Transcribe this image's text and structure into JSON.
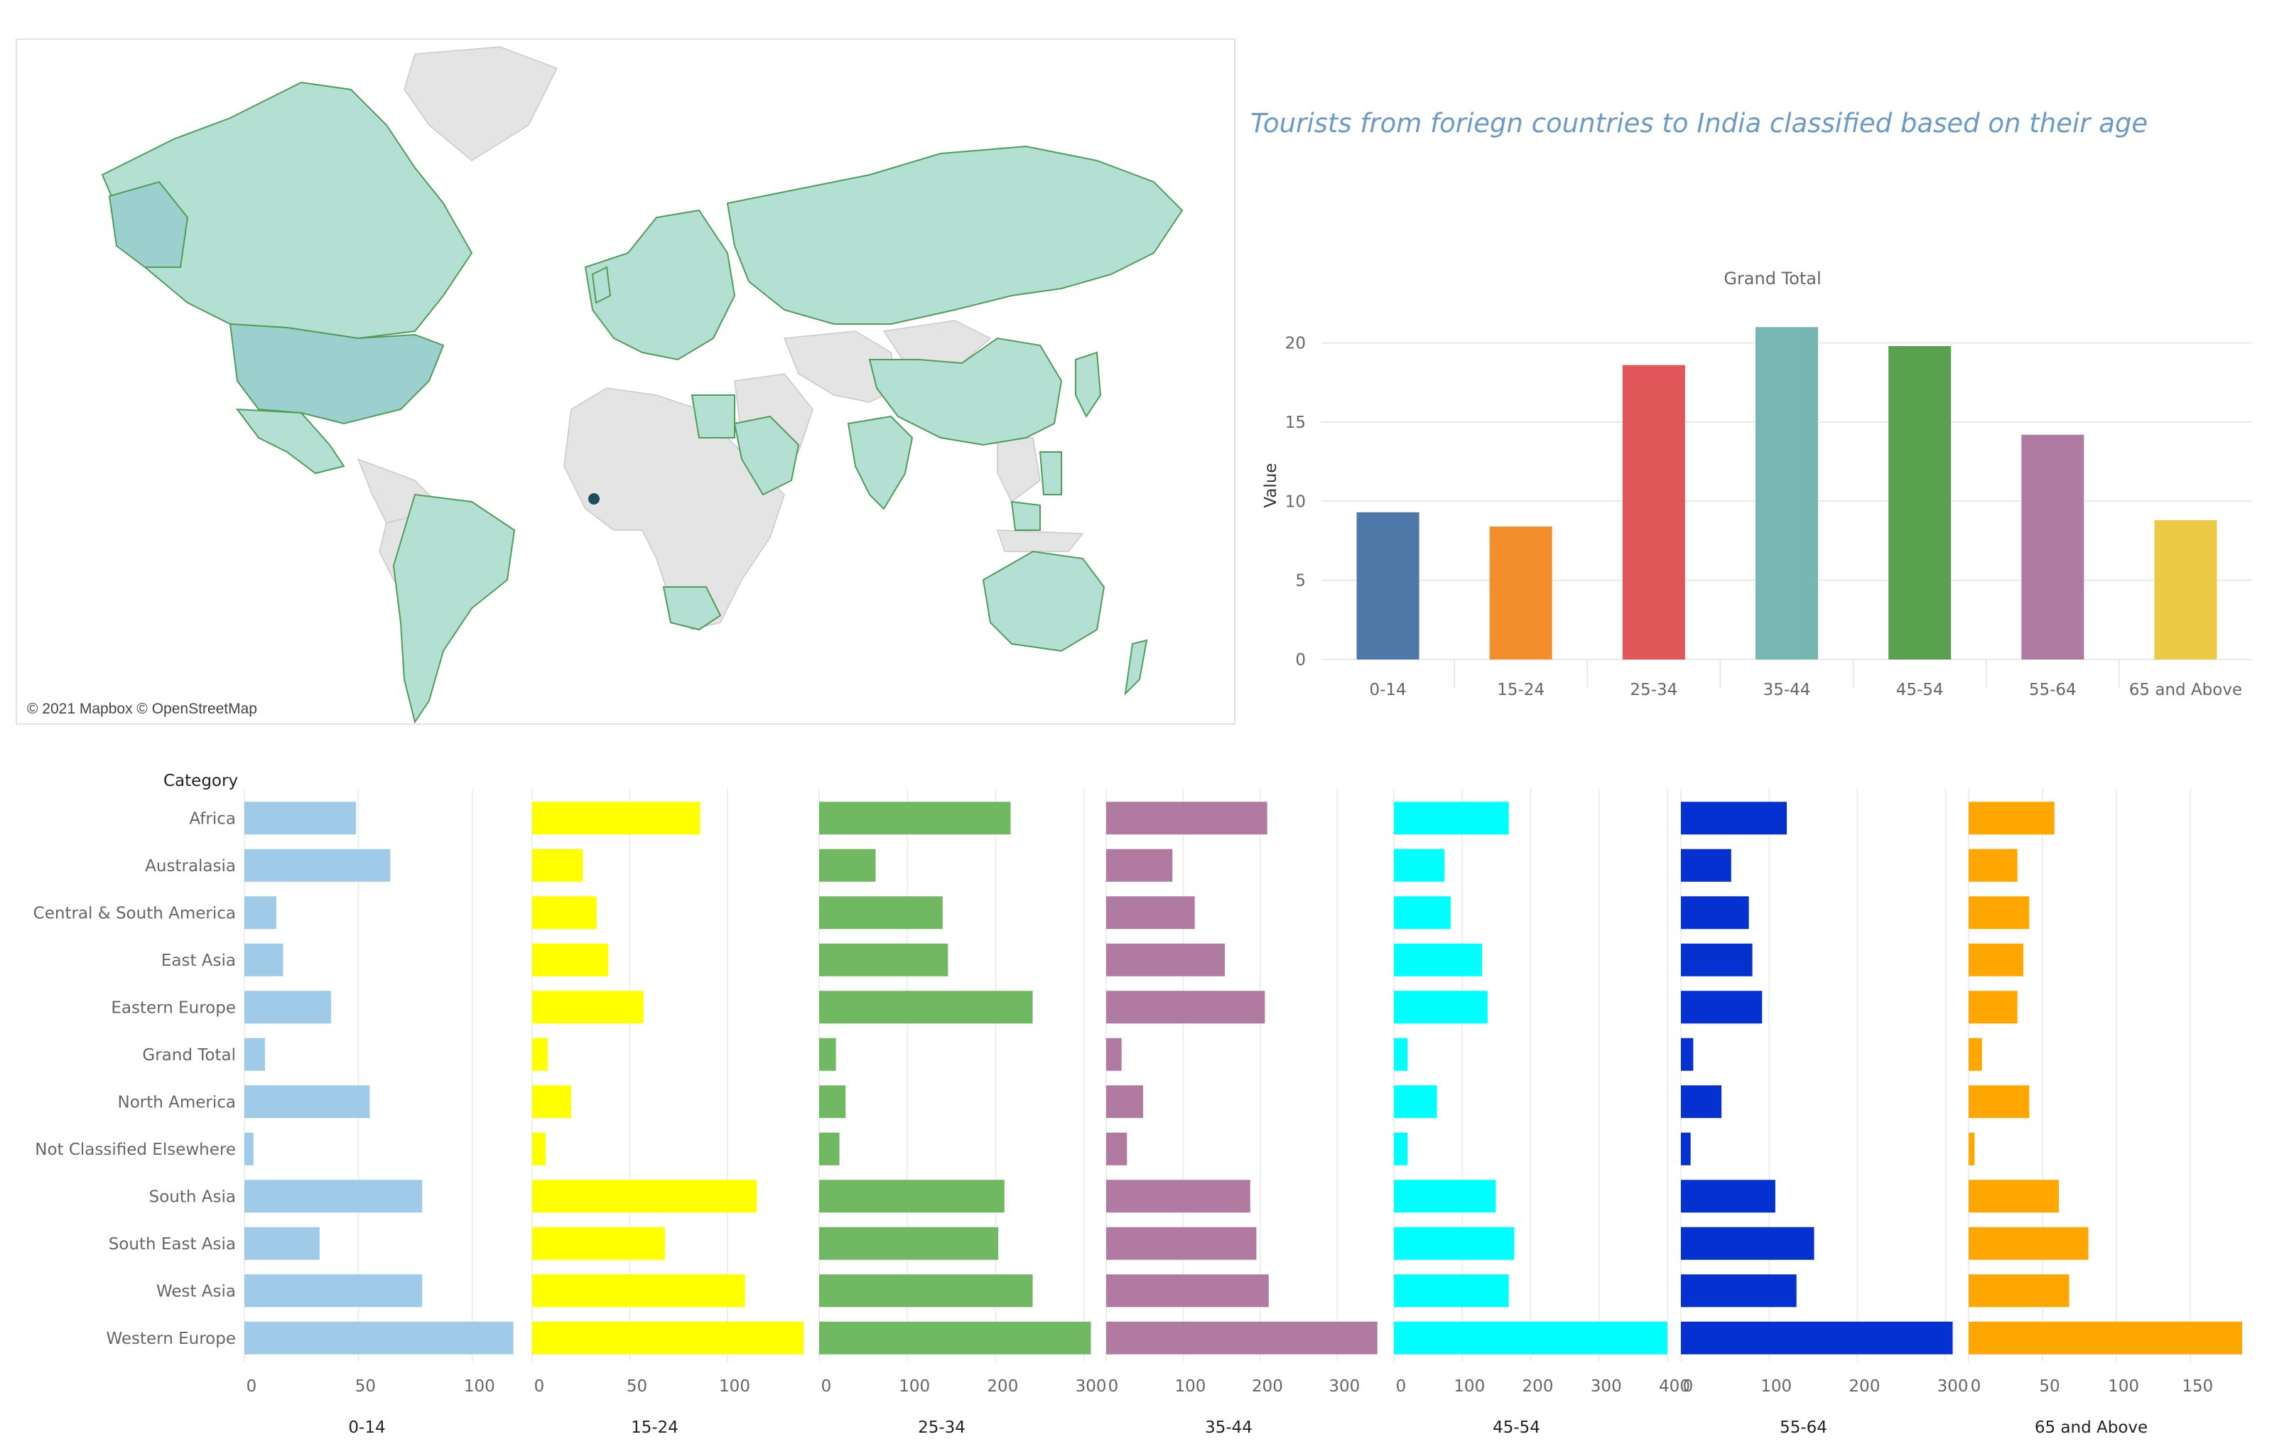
{
  "map": {
    "credit": "© 2021 Mapbox © OpenStreetMap",
    "colors": {
      "ocean": "#ffffff",
      "land_grey": "#e4e4e4",
      "land_highlight": "#b4dfd3",
      "land_strong": "#9bd0cf",
      "border": "#4f9e57",
      "marker": "#1f4e5b"
    }
  },
  "title": "Tourists from foriegn countries to India classified based on their age",
  "chart_data": [
    {
      "type": "bar",
      "title": "Grand Total",
      "xlabel": "",
      "ylabel": "Value",
      "ylim": [
        0,
        22
      ],
      "yticks": [
        0,
        5,
        10,
        15,
        20
      ],
      "grid": true,
      "categories": [
        "0-14",
        "15-24",
        "25-34",
        "35-44",
        "45-54",
        "55-64",
        "65 and Above"
      ],
      "values": [
        9.3,
        8.4,
        18.6,
        21.0,
        19.8,
        14.2,
        8.8
      ],
      "colors": [
        "#4e79a7",
        "#f28e2b",
        "#e15759",
        "#76b7b2",
        "#59a14f",
        "#af7aa1",
        "#edc948"
      ]
    },
    {
      "type": "bar",
      "orientation": "horizontal",
      "ylabel": "Category",
      "grid": true,
      "categories": [
        "Africa",
        "Australasia",
        "Central & South America",
        "East Asia",
        "Eastern Europe",
        "Grand Total",
        "North America",
        "Not Classified Elsewhere",
        "South Asia",
        "South East Asia",
        "West Asia",
        "Western Europe"
      ],
      "panels": [
        {
          "name": "0-14",
          "color": "#a0cbe8",
          "xlim": [
            0,
            120
          ],
          "xticks": [
            0,
            50,
            100
          ],
          "values": [
            49,
            64,
            14,
            17,
            38,
            9,
            55,
            4,
            78,
            33,
            78,
            118
          ]
        },
        {
          "name": "15-24",
          "color": "#ffff00",
          "xlim": [
            0,
            140
          ],
          "xticks": [
            0,
            50,
            100
          ],
          "values": [
            86,
            26,
            33,
            39,
            57,
            8,
            20,
            7,
            115,
            68,
            109,
            139
          ]
        },
        {
          "name": "25-34",
          "color": "#70b862",
          "xlim": [
            0,
            310
          ],
          "xticks": [
            0,
            100,
            200,
            300
          ],
          "values": [
            217,
            64,
            140,
            146,
            242,
            19,
            30,
            23,
            210,
            203,
            242,
            308
          ]
        },
        {
          "name": "35-44",
          "color": "#b07aa1",
          "xlim": [
            0,
            355
          ],
          "xticks": [
            0,
            100,
            200,
            300
          ],
          "values": [
            209,
            86,
            115,
            154,
            206,
            20,
            48,
            27,
            187,
            195,
            211,
            352
          ]
        },
        {
          "name": "45-54",
          "color": "#00ffff",
          "xlim": [
            0,
            400
          ],
          "xticks": [
            0,
            100,
            200,
            300,
            400
          ],
          "values": [
            168,
            74,
            83,
            129,
            137,
            20,
            63,
            20,
            149,
            176,
            168,
            400
          ]
        },
        {
          "name": "55-64",
          "color": "#0431cf",
          "xlim": [
            0,
            310
          ],
          "xticks": [
            0,
            100,
            200,
            300
          ],
          "values": [
            120,
            57,
            77,
            81,
            92,
            14,
            46,
            11,
            107,
            151,
            131,
            308
          ]
        },
        {
          "name": "65 and Above",
          "color": "#ffa600",
          "xlim": [
            0,
            185
          ],
          "xticks": [
            0,
            50,
            100,
            150
          ],
          "values": [
            58,
            33,
            41,
            37,
            33,
            9,
            41,
            4,
            61,
            81,
            68,
            185
          ]
        }
      ]
    }
  ]
}
